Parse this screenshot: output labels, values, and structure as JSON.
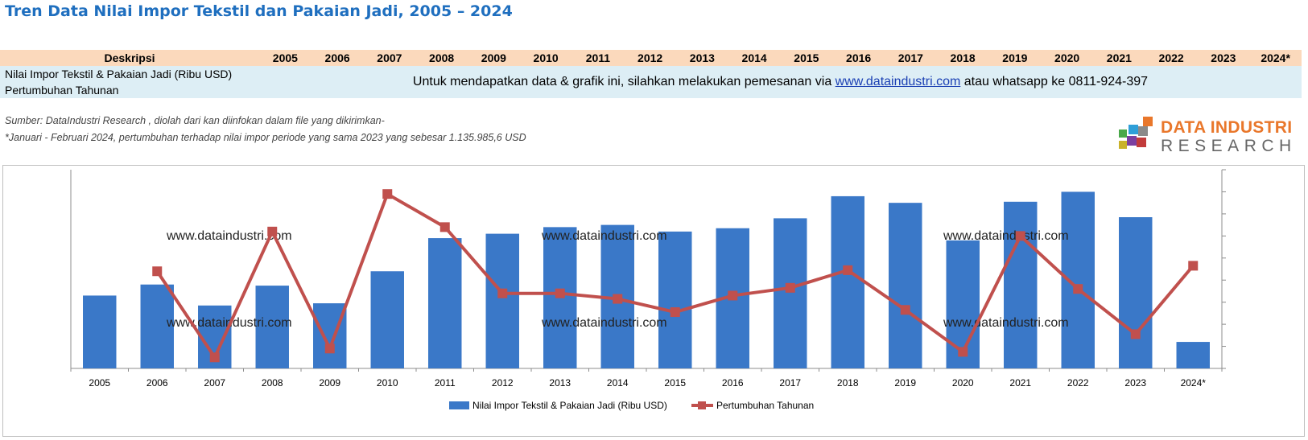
{
  "title": "Tren Data Nilai Impor Tekstil dan Pakaian Jadi, 2005 – 2024",
  "table": {
    "header_label": "Deskripsi",
    "years": [
      "2005",
      "2006",
      "2007",
      "2008",
      "2009",
      "2010",
      "2011",
      "2012",
      "2013",
      "2014",
      "2015",
      "2016",
      "2017",
      "2018",
      "2019",
      "2020",
      "2021",
      "2022",
      "2023",
      "2024*"
    ],
    "rows": [
      "Nilai Impor Tekstil & Pakaian Jadi (Ribu USD)",
      "Pertumbuhan Tahunan"
    ],
    "notice_before": "Untuk mendapatkan data & grafik ini, silahkan melakukan pemesanan via ",
    "notice_link": "www.dataindustri.com",
    "notice_after": " atau whatsapp ke 0811-924-397"
  },
  "source_note": "Sumber: DataIndustri Research , diolah dari kan diinfokan dalam file yang dikirimkan-",
  "footnote": "*Januari - Februari 2024, pertumbuhan terhadap nilai impor periode yang sama 2023 yang sebesar 1.135.985,6 USD",
  "logo": {
    "line1": "DATA INDUSTRI",
    "line2": "RESEARCH"
  },
  "watermark": "www.dataindustri.com",
  "colors": {
    "bar": "#3a78c8",
    "line": "#c0504d",
    "title": "#1f6fbf"
  },
  "chart_data": {
    "type": "bar",
    "categories": [
      "2005",
      "2006",
      "2007",
      "2008",
      "2009",
      "2010",
      "2011",
      "2012",
      "2013",
      "2014",
      "2015",
      "2016",
      "2017",
      "2018",
      "2019",
      "2020",
      "2021",
      "2022",
      "2023",
      "2024*"
    ],
    "series": [
      {
        "name": "Nilai Impor Tekstil & Pakaian Jadi (Ribu USD)",
        "type": "bar",
        "axis": "left",
        "values": [
          33,
          38,
          28.5,
          37.5,
          29.5,
          44,
          59,
          61,
          64,
          65,
          62,
          63.5,
          68,
          78,
          75,
          58,
          75.5,
          80,
          68.5,
          12
        ]
      },
      {
        "name": "Pertumbuhan Tahunan",
        "type": "line",
        "axis": "right",
        "values": [
          null,
          44,
          5,
          62,
          9,
          79,
          64,
          34,
          34,
          31.5,
          25.5,
          33,
          36.5,
          44.5,
          26.5,
          7.5,
          60,
          36,
          15.5,
          46.5
        ]
      }
    ],
    "ylim": [
      0,
      90
    ],
    "y2lim": [
      0,
      90
    ],
    "grid": false,
    "legend": "bottom"
  }
}
